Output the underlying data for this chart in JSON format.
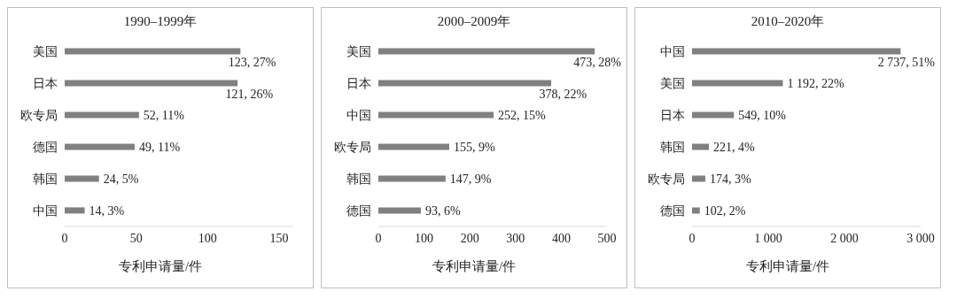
{
  "chart_data": [
    {
      "type": "bar",
      "orientation": "horizontal",
      "title": "1990–1999年",
      "xlabel": "专利申请量/件",
      "categories": [
        "美国",
        "日本",
        "欧专局",
        "德国",
        "韩国",
        "中国"
      ],
      "values": [
        123,
        121,
        52,
        49,
        24,
        14
      ],
      "value_labels": [
        "123, 27%",
        "121, 26%",
        "52, 11%",
        "49, 11%",
        "24, 5%",
        "14, 3%"
      ],
      "color": "#808080",
      "xlim": [
        0,
        160
      ],
      "xticks": [
        0,
        50,
        100,
        150
      ],
      "grid": false,
      "legend": false
    },
    {
      "type": "bar",
      "orientation": "horizontal",
      "title": "2000–2009年",
      "xlabel": "专利申请量/件",
      "categories": [
        "美国",
        "日本",
        "中国",
        "欧专局",
        "韩国",
        "德国"
      ],
      "values": [
        473,
        378,
        252,
        155,
        147,
        93
      ],
      "value_labels": [
        "473, 28%",
        "378, 22%",
        "252, 15%",
        "155, 9%",
        "147, 9%",
        "93, 6%"
      ],
      "color": "#808080",
      "xlim": [
        0,
        500
      ],
      "xticks": [
        0,
        100,
        200,
        300,
        400,
        500
      ],
      "grid": false,
      "legend": false
    },
    {
      "type": "bar",
      "orientation": "horizontal",
      "title": "2010–2020年",
      "xlabel": "专利申请量/件",
      "categories": [
        "中国",
        "美国",
        "日本",
        "韩国",
        "欧专局",
        "德国"
      ],
      "values": [
        2737,
        1192,
        549,
        221,
        174,
        102
      ],
      "value_labels": [
        "2 737, 51%",
        "1 192, 22%",
        "549, 10%",
        "221, 4%",
        "174, 3%",
        "102, 2%"
      ],
      "color": "#808080",
      "xlim": [
        0,
        3000
      ],
      "xticks": [
        0,
        {
          "value": 1000,
          "label": "1 000"
        },
        {
          "value": 2000,
          "label": "2 000"
        },
        {
          "value": 3000,
          "label": "3 000"
        }
      ],
      "grid": false,
      "legend": false
    }
  ]
}
